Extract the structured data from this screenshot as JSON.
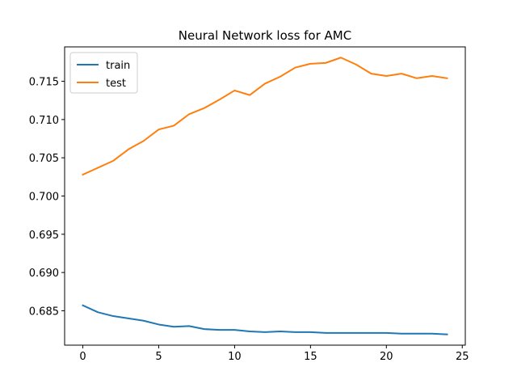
{
  "chart_data": {
    "type": "line",
    "title": "Neural Network loss for AMC",
    "xlabel": "",
    "ylabel": "",
    "xlim": [
      -1.2,
      25.2
    ],
    "ylim": [
      0.6805,
      0.7195
    ],
    "xticks": [
      0,
      5,
      10,
      15,
      20,
      25
    ],
    "xtick_labels": [
      "0",
      "5",
      "10",
      "15",
      "20",
      "25"
    ],
    "yticks": [
      0.685,
      0.69,
      0.695,
      0.7,
      0.705,
      0.71,
      0.715
    ],
    "ytick_labels": [
      "0.685",
      "0.690",
      "0.695",
      "0.700",
      "0.705",
      "0.710",
      "0.715"
    ],
    "grid": false,
    "legend": "upper-left",
    "x": [
      0,
      1,
      2,
      3,
      4,
      5,
      6,
      7,
      8,
      9,
      10,
      11,
      12,
      13,
      14,
      15,
      16,
      17,
      18,
      19,
      20,
      21,
      22,
      23,
      24
    ],
    "series": [
      {
        "name": "train",
        "color": "#1f77b4",
        "values": [
          0.6857,
          0.6848,
          0.6843,
          0.684,
          0.6837,
          0.6832,
          0.6829,
          0.683,
          0.6826,
          0.6825,
          0.6825,
          0.6823,
          0.6822,
          0.6823,
          0.6822,
          0.6822,
          0.6821,
          0.6821,
          0.6821,
          0.6821,
          0.6821,
          0.682,
          0.682,
          0.682,
          0.6819
        ]
      },
      {
        "name": "test",
        "color": "#ff7f0e",
        "values": [
          0.7028,
          0.7037,
          0.7046,
          0.7061,
          0.7072,
          0.7087,
          0.7092,
          0.7107,
          0.7115,
          0.7126,
          0.7138,
          0.7132,
          0.7147,
          0.7156,
          0.7168,
          0.7173,
          0.7174,
          0.7181,
          0.7172,
          0.716,
          0.7157,
          0.716,
          0.7154,
          0.7157,
          0.7154
        ]
      }
    ]
  }
}
